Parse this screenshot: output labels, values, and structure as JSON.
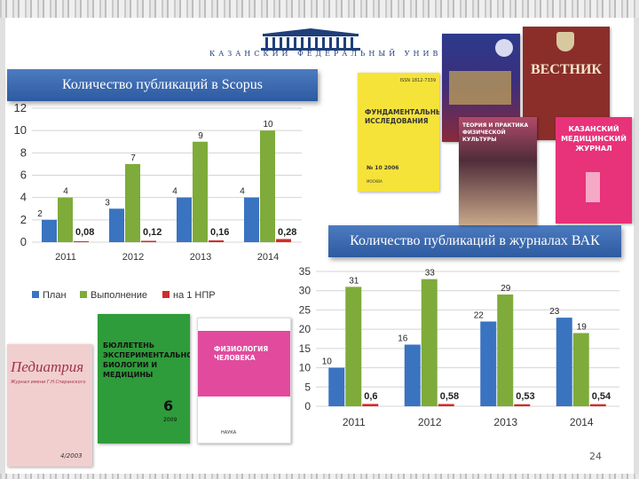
{
  "header": {
    "university": "КАЗАНСКИЙ ФЕДЕРАЛЬНЫЙ УНИВЕРСИТЕТ",
    "colors": {
      "banner": "#3d6cb5",
      "plan": "#3a73c0",
      "done": "#7eab3a",
      "npr": "#d32b2b"
    }
  },
  "page_number": "24",
  "covers": {
    "fundamental": {
      "title": "ФУНДАМЕНТАЛЬНЫЕ ИССЛЕДОВАНИЯ",
      "issn": "ISSN 1812-7339",
      "number": "№ 10 2006",
      "city": "МОСКВА"
    },
    "vestnik": {
      "title": "ВЕСТНИК"
    },
    "kmj": {
      "title": "КАЗАНСКИЙ МЕДИЦИНСКИЙ ЖУРНАЛ"
    },
    "theory": {
      "title": "ТЕОРИЯ И ПРАКТИКА ФИЗИЧЕСКОЙ КУЛЬТУРЫ"
    },
    "pediatria": {
      "title": "Педиатрия",
      "subtitle": "Журнал имени Г.Н.Сперанского",
      "issue": "4/2003"
    },
    "bulletin": {
      "title": "БЮЛЛЕТЕНЬ ЭКСПЕРИМЕНТАЛЬНОЙ БИОЛОГИИ И МЕДИЦИНЫ",
      "issue": "6",
      "year": "2009"
    },
    "physiology": {
      "title": "ФИЗИОЛОГИЯ ЧЕЛОВЕКА",
      "publisher": "НАУКА"
    }
  },
  "chart_data": [
    {
      "type": "bar",
      "title": "Количество публикаций в Scopus",
      "categories": [
        "2011",
        "2012",
        "2013",
        "2014"
      ],
      "series": [
        {
          "name": "План",
          "values": [
            2,
            3,
            4,
            4
          ],
          "labels": [
            "2",
            "3",
            "4",
            "4"
          ]
        },
        {
          "name": "Выполнение",
          "values": [
            4,
            7,
            9,
            10
          ],
          "labels": [
            "4",
            "7",
            "9",
            "10"
          ]
        },
        {
          "name": "на 1 НПР",
          "values": [
            0.08,
            0.12,
            0.16,
            0.28
          ],
          "labels": [
            "0,08",
            "0,12",
            "0,16",
            "0,28"
          ]
        }
      ],
      "ylim": [
        0,
        12
      ],
      "yticks": [
        0,
        2,
        4,
        6,
        8,
        10,
        12
      ],
      "legend": "bottom",
      "grid": true
    },
    {
      "type": "bar",
      "title": "Количество публикаций в журналах ВАК",
      "categories": [
        "2011",
        "2012",
        "2013",
        "2014"
      ],
      "series": [
        {
          "name": "План",
          "values": [
            10,
            16,
            22,
            23
          ],
          "labels": [
            "10",
            "16",
            "22",
            "23"
          ]
        },
        {
          "name": "Выполнение",
          "values": [
            31,
            33,
            29,
            19
          ],
          "labels": [
            "31",
            "33",
            "29",
            "19"
          ]
        },
        {
          "name": "на 1 НПР",
          "values": [
            0.6,
            0.58,
            0.53,
            0.54
          ],
          "labels": [
            "0,6",
            "0,58",
            "0,53",
            "0,54"
          ]
        }
      ],
      "ylim": [
        0,
        35
      ],
      "yticks": [
        0,
        5,
        10,
        15,
        20,
        25,
        30,
        35
      ],
      "grid": true
    }
  ]
}
